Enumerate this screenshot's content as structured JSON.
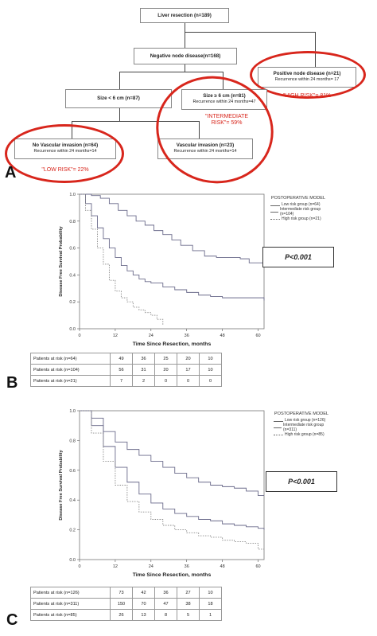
{
  "panel_a": {
    "letter": "A",
    "root": "Liver resection (n=189)",
    "negative": "Negative node disease(n=168)",
    "positive_title": "Positive node disease (n=21)",
    "positive_sub": "Recurrence within 24 months= 17",
    "high_risk": "\"HIGH RISK\"= 81%",
    "size_small": "Size < 6 cm (n=87)",
    "size_large_title": "Size ≥ 6 cm (n=81)",
    "size_large_sub": "Recurrence within 24 months=47",
    "intermediate_risk": "\"INTERMEDIATE RISK\"= 59%",
    "no_vasc_title": "No Vascular invasion (n=64)",
    "no_vasc_sub": "Recurrence within 24 months=14",
    "low_risk": "\"LOW RISK\"= 22%",
    "vasc_title": "Vascular invasion (n=23)",
    "vasc_sub": "Recurrence within 24 months=14"
  },
  "chart_data": [
    {
      "type": "line",
      "panel": "B",
      "xlabel": "Time Since Resection, months",
      "ylabel": "Disease Free Survival Probability",
      "xticks": [
        0,
        12,
        24,
        36,
        48,
        60
      ],
      "yticks": [
        "0.0",
        "0.2",
        "0.4",
        "0.6",
        "0.8",
        "1.0"
      ],
      "xlim": [
        0,
        62
      ],
      "ylim": [
        0,
        1.0
      ],
      "legend_title": "POSTOPERATIVE MODEL",
      "pvalue": "P<0.001",
      "series": [
        {
          "name": "Low risk group (n=64)",
          "style": "solid",
          "x": [
            0,
            4,
            7,
            10,
            13,
            16,
            19,
            22,
            25,
            28,
            31,
            34,
            38,
            42,
            46,
            50,
            54,
            57,
            62
          ],
          "y": [
            1.0,
            0.99,
            0.97,
            0.93,
            0.88,
            0.84,
            0.8,
            0.77,
            0.73,
            0.7,
            0.66,
            0.62,
            0.58,
            0.54,
            0.53,
            0.53,
            0.52,
            0.49,
            0.49
          ]
        },
        {
          "name": "Intermediate risk group (n=104)",
          "style": "solid",
          "x": [
            0,
            2,
            4,
            6,
            8,
            10,
            12,
            14,
            16,
            18,
            20,
            22,
            24,
            28,
            32,
            36,
            40,
            44,
            48,
            52,
            56,
            62
          ],
          "y": [
            1.0,
            0.93,
            0.84,
            0.75,
            0.67,
            0.6,
            0.53,
            0.47,
            0.43,
            0.4,
            0.37,
            0.35,
            0.34,
            0.31,
            0.29,
            0.27,
            0.25,
            0.24,
            0.23,
            0.23,
            0.23,
            0.21
          ]
        },
        {
          "name": "High risk group (n=21)",
          "style": "dotted",
          "x": [
            0,
            2,
            4,
            6,
            8,
            10,
            12,
            14,
            16,
            18,
            20,
            22,
            24,
            26,
            28
          ],
          "y": [
            1.0,
            0.88,
            0.74,
            0.6,
            0.48,
            0.36,
            0.28,
            0.23,
            0.2,
            0.16,
            0.14,
            0.12,
            0.1,
            0.07,
            0.03
          ]
        }
      ]
    },
    {
      "type": "line",
      "panel": "C",
      "xlabel": "Time Since Resection, months",
      "ylabel": "Disease Free Survival Probability",
      "xticks": [
        0,
        12,
        24,
        36,
        48,
        60
      ],
      "yticks": [
        "0.0",
        "0.2",
        "0.4",
        "0.6",
        "0.8",
        "1.0"
      ],
      "xlim": [
        0,
        62
      ],
      "ylim": [
        0,
        1.0
      ],
      "legend_title": "POSTOPERATIVE MODEL",
      "pvalue": "P<0.001",
      "series": [
        {
          "name": "Low risk group (n=126)",
          "style": "solid",
          "x": [
            0,
            4,
            8,
            12,
            16,
            20,
            24,
            28,
            32,
            36,
            40,
            44,
            48,
            52,
            56,
            60,
            62
          ],
          "y": [
            1.0,
            0.95,
            0.86,
            0.79,
            0.74,
            0.7,
            0.66,
            0.62,
            0.58,
            0.55,
            0.52,
            0.5,
            0.49,
            0.48,
            0.46,
            0.43,
            0.43
          ]
        },
        {
          "name": "Intermediate risk group (n=311)",
          "style": "solid",
          "x": [
            0,
            4,
            8,
            12,
            16,
            20,
            24,
            28,
            32,
            36,
            40,
            44,
            48,
            52,
            56,
            60,
            62
          ],
          "y": [
            1.0,
            0.9,
            0.76,
            0.62,
            0.52,
            0.44,
            0.38,
            0.34,
            0.31,
            0.29,
            0.27,
            0.26,
            0.24,
            0.23,
            0.22,
            0.21,
            0.2
          ]
        },
        {
          "name": "High risk group (n=85)",
          "style": "dotted",
          "x": [
            0,
            4,
            8,
            12,
            16,
            20,
            24,
            28,
            32,
            36,
            40,
            44,
            48,
            52,
            56,
            60,
            62
          ],
          "y": [
            1.0,
            0.85,
            0.66,
            0.5,
            0.39,
            0.32,
            0.27,
            0.23,
            0.2,
            0.18,
            0.16,
            0.15,
            0.13,
            0.12,
            0.11,
            0.07,
            0.07
          ]
        }
      ]
    }
  ],
  "panel_b": {
    "letter": "B",
    "table": [
      {
        "label": "Patients at risk (n=64)",
        "values": [
          "49",
          "36",
          "25",
          "20",
          "10"
        ]
      },
      {
        "label": "Patients at risk (n=104)",
        "values": [
          "56",
          "31",
          "20",
          "17",
          "10"
        ]
      },
      {
        "label": "Patients at risk (n=21)",
        "values": [
          "7",
          "2",
          "0",
          "0",
          "0"
        ]
      }
    ]
  },
  "panel_c": {
    "letter": "C",
    "table": [
      {
        "label": "Patients at risk (n=126)",
        "values": [
          "73",
          "42",
          "36",
          "27",
          "10"
        ]
      },
      {
        "label": "Patients at risk (n=311)",
        "values": [
          "150",
          "70",
          "47",
          "38",
          "18"
        ]
      },
      {
        "label": "Patients at risk (n=85)",
        "values": [
          "26",
          "13",
          "8",
          "5",
          "1"
        ]
      }
    ]
  }
}
